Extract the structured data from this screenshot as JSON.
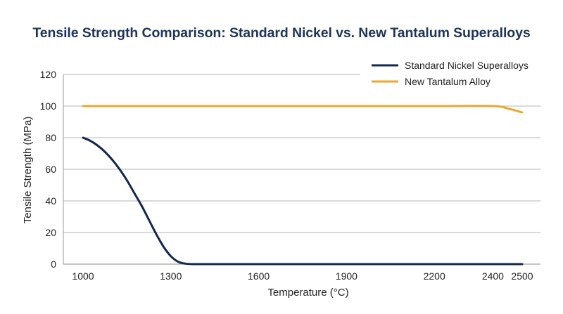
{
  "chart_data": {
    "type": "line",
    "title": "Tensile Strength Comparison: Standard Nickel vs. New Tantalum Superalloys",
    "xlabel": "Temperature (°C)",
    "ylabel": "Tensile Strength (MPa)",
    "xlim": [
      1000,
      2500
    ],
    "ylim": [
      0,
      120
    ],
    "xticks": [
      1000,
      1300,
      1600,
      1900,
      2200,
      2400,
      2500
    ],
    "yticks": [
      0,
      20,
      40,
      60,
      80,
      100,
      120
    ],
    "grid": "horizontal",
    "legend_position": "top-right",
    "series": [
      {
        "name": "Standard Nickel Superalloys",
        "color": "#14284b",
        "x": [
          1000,
          1025,
          1050,
          1075,
          1100,
          1125,
          1150,
          1175,
          1200,
          1225,
          1250,
          1275,
          1300,
          1325,
          1350,
          1375,
          1400,
          1600,
          1900,
          2200,
          2500
        ],
        "y": [
          80,
          78,
          75,
          71,
          66,
          60,
          53,
          45,
          37,
          28,
          19,
          11,
          5,
          1.5,
          0.3,
          0,
          0,
          0,
          0,
          0,
          0
        ]
      },
      {
        "name": "New Tantalum Alloy",
        "color": "#e9a830",
        "x": [
          1000,
          1300,
          1600,
          1900,
          2200,
          2400,
          2450,
          2500
        ],
        "y": [
          100,
          100,
          100,
          100,
          100,
          100,
          98.5,
          96
        ]
      }
    ]
  }
}
